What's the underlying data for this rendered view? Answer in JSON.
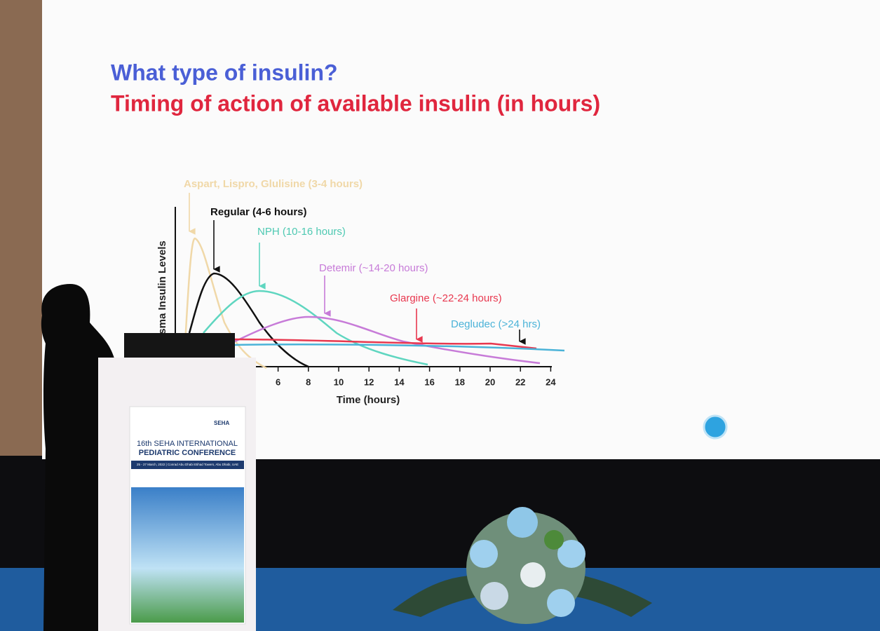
{
  "slide": {
    "title": "What type of insulin?",
    "subtitle": "Timing of action of available insulin (in hours)",
    "chart": {
      "type": "line",
      "y_label": "sma Insulin Levels",
      "x_label": "Time (hours)",
      "xticks": [
        6,
        8,
        10,
        12,
        14,
        16,
        18,
        20,
        22,
        24
      ],
      "curve_labels": {
        "aspart": "Aspart, Lispro, Glulisine (3-4 hours)",
        "regular": "Regular (4-6 hours)",
        "nph": "NPH (10-16 hours)",
        "detemir": "Detemir (~14-20 hours)",
        "glargine": "Glargine (~22-24 hours)",
        "degludec": "Degludec (>24 hrs)"
      }
    }
  },
  "podium": {
    "brand": "SEHA",
    "conference_line1": "16th SEHA INTERNATIONAL",
    "conference_line2": "PEDIATRIC CONFERENCE",
    "dates": "25 - 27 March, 2022 | Conrad Abu Dhabi Etihad Towers, Abu Dhabi, UAE"
  }
}
